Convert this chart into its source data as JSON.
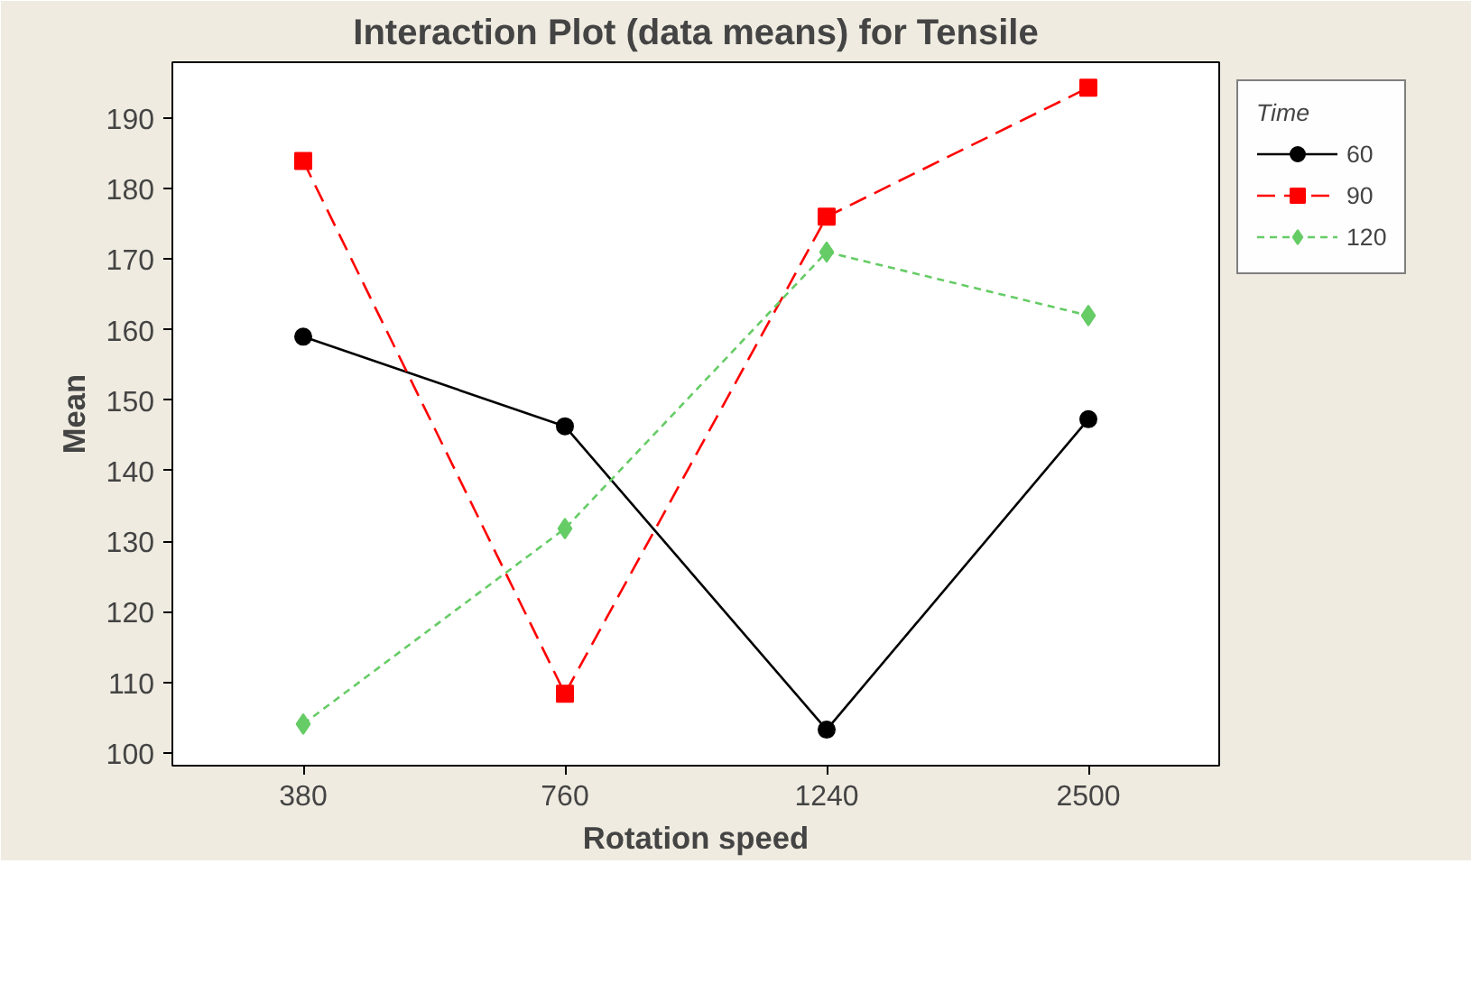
{
  "chart_data": {
    "type": "line",
    "title": "Interaction Plot (data means) for Tensile",
    "xlabel": "Rotation speed",
    "ylabel": "Mean",
    "legend_title": "Time",
    "categories": [
      "380",
      "760",
      "1240",
      "2500"
    ],
    "series": [
      {
        "name": "60",
        "color": "#000000",
        "marker": "circle",
        "line_style": "solid",
        "values": [
          159.0,
          146.3,
          103.3,
          147.3
        ]
      },
      {
        "name": "90",
        "color": "#ff0000",
        "marker": "square",
        "line_style": "dashed",
        "values": [
          183.9,
          108.4,
          176.0,
          194.3
        ]
      },
      {
        "name": "120",
        "color": "#66cc66",
        "marker": "diamond",
        "line_style": "dotted",
        "values": [
          104.1,
          131.8,
          171.0,
          162.0
        ]
      }
    ],
    "ylim": [
      98.2,
      197.9
    ],
    "yticks": [
      100,
      110,
      120,
      130,
      140,
      150,
      160,
      170,
      180,
      190
    ],
    "grid": false,
    "legend": "top right"
  }
}
